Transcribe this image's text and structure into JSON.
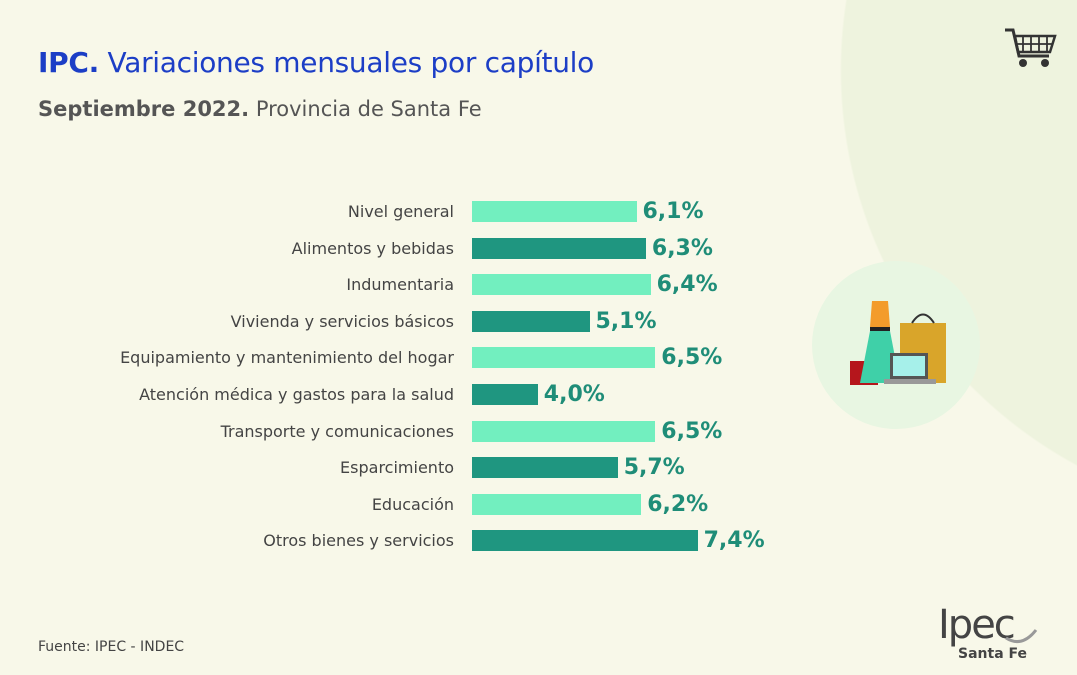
{
  "header": {
    "title_bold": "IPC.",
    "title_rest": " Variaciones mensuales por capítulo",
    "subtitle_bold": "Septiembre 2022.",
    "subtitle_rest": " Provincia de Santa Fe"
  },
  "chart_data": {
    "type": "bar",
    "orientation": "horizontal",
    "title": "IPC. Variaciones mensuales por capítulo",
    "subtitle": "Septiembre 2022. Provincia de Santa Fe",
    "categories": [
      "Nivel general",
      "Alimentos y bebidas",
      "Indumentaria",
      "Vivienda y servicios básicos",
      "Equipamiento y mantenimiento del hogar",
      "Atención médica y gastos para la salud",
      "Transporte y comunicaciones",
      "Esparcimiento",
      "Educación",
      "Otros bienes y servicios"
    ],
    "values": [
      6.1,
      6.3,
      6.4,
      5.1,
      6.5,
      4.0,
      6.5,
      5.7,
      6.2,
      7.4
    ],
    "labels": [
      "6,1%",
      "6,3%",
      "6,4%",
      "5,1%",
      "6,5%",
      "4,0%",
      "6,5%",
      "5,7%",
      "6,2%",
      "7,4%"
    ],
    "unit": "%",
    "grid": false,
    "colors": [
      "#72efbf",
      "#1f9680"
    ]
  },
  "footer": {
    "source": "Fuente: IPEC - INDEC",
    "logo_text": "Ipec",
    "logo_sub": "Santa Fe"
  },
  "icons": [
    "shopping-cart-icon",
    "shopping-illustration"
  ]
}
